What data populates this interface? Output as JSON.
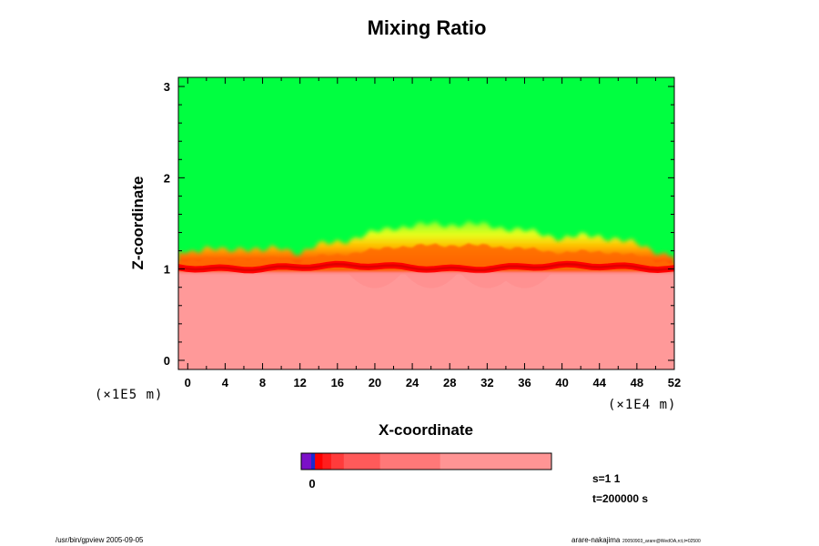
{
  "chart_data": {
    "type": "heatmap",
    "title": "Mixing Ratio",
    "xlabel": "X-coordinate",
    "ylabel": "Z-coordinate",
    "x_scale_label": "(×1E4 m)",
    "y_scale_label": "(×1E5 m)",
    "xlim": [
      -1,
      52
    ],
    "ylim": [
      -0.1,
      3.1
    ],
    "x_ticks": [
      0,
      4,
      8,
      12,
      16,
      20,
      24,
      28,
      32,
      36,
      40,
      44,
      48,
      52
    ],
    "y_ticks": [
      0,
      1,
      2,
      3
    ],
    "x_minor_step": 2,
    "y_minor_step": 0.2,
    "regions": {
      "lower_mixed_top": 1.0,
      "transition_layer": [
        1.0,
        1.5
      ],
      "upper_dry_from": 1.5
    },
    "interface_profile": {
      "x": [
        -1,
        2,
        4,
        6,
        8,
        10,
        12,
        14,
        16,
        18,
        20,
        22,
        24,
        26,
        28,
        30,
        32,
        34,
        36,
        38,
        40,
        42,
        44,
        46,
        48,
        50,
        52
      ],
      "z_top": [
        1.19,
        1.22,
        1.2,
        1.24,
        1.2,
        1.23,
        1.18,
        1.26,
        1.3,
        1.34,
        1.4,
        1.46,
        1.47,
        1.49,
        1.49,
        1.49,
        1.48,
        1.45,
        1.42,
        1.38,
        1.34,
        1.36,
        1.36,
        1.33,
        1.27,
        1.2,
        1.14
      ]
    },
    "colorbar": {
      "tick_label": "0",
      "colors": [
        "#7b10c8",
        "#1a2bd0",
        "#ff0000",
        "#ff1e1e",
        "#ff3b3b",
        "#ff5a5a",
        "#ff7878",
        "#ff9494",
        "#ff9d9d"
      ],
      "segment_widths": [
        0.04,
        0.015,
        0.03,
        0.035,
        0.05,
        0.145,
        0.24,
        0.44,
        0.005
      ]
    },
    "region_colors": {
      "upper": "#00ff40",
      "lower": "#ff9999",
      "interface": "#ff0000"
    },
    "info": {
      "s": "s=1 1",
      "t": "t=200000 s"
    }
  },
  "footer": {
    "left": "/usr/bin/gpview 2005-09-05",
    "right_name": "arare-nakajima",
    "right_path": "20050903_arare@WedOA,rct,t=02500"
  }
}
